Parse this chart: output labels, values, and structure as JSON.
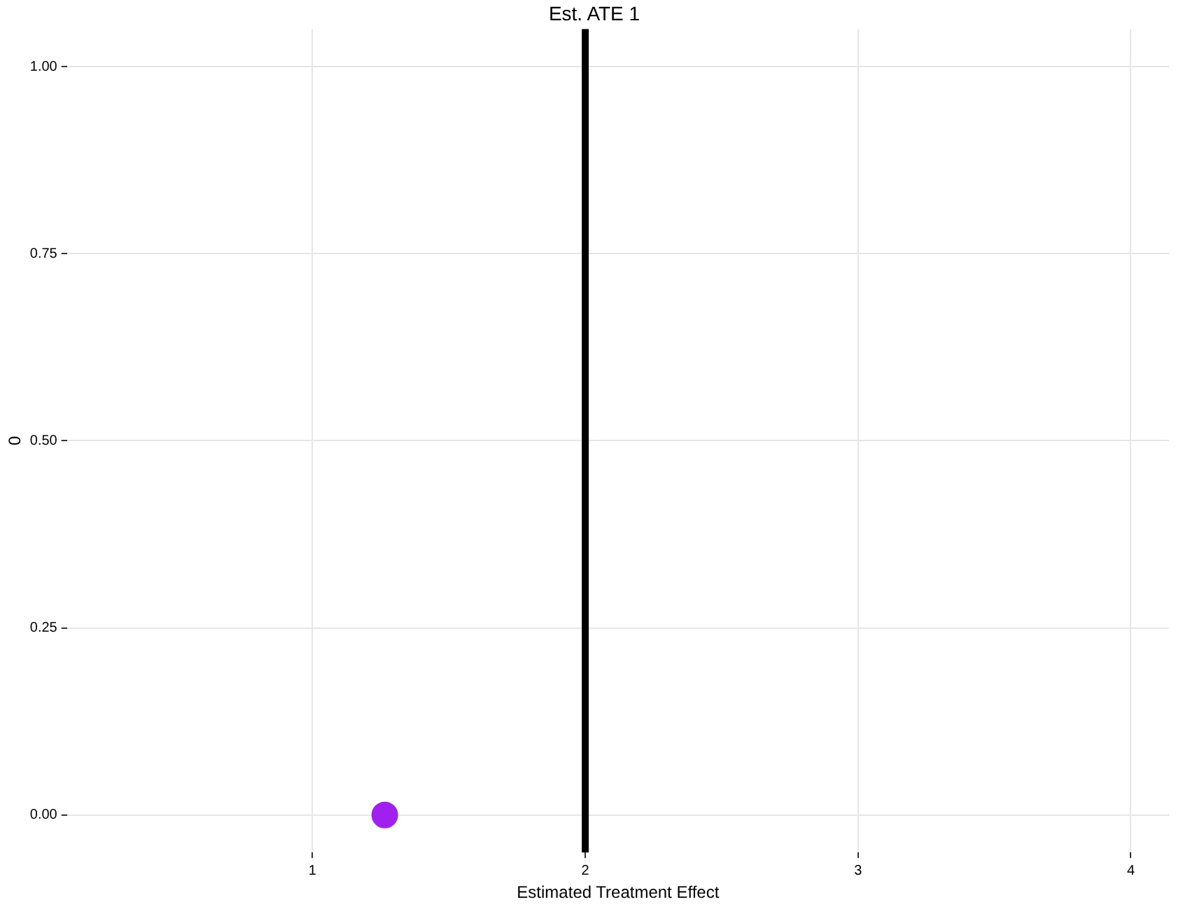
{
  "chart_data": {
    "type": "scatter",
    "title": "Est. ATE 1",
    "xlabel": "Estimated Treatment Effect",
    "ylabel": "0",
    "x": [
      1.265
    ],
    "values": [
      0
    ],
    "color": "#a020f0",
    "marker": "circle",
    "xlim": [
      0.1,
      4.14
    ],
    "xticks": [
      1,
      2,
      3,
      4
    ],
    "ylim": [
      -0.05,
      1.05
    ],
    "yticks": [
      {
        "value": 0,
        "label": "0.00"
      },
      {
        "value": 0.25,
        "label": "0.25"
      },
      {
        "value": 0.5,
        "label": "0.50"
      },
      {
        "value": 0.75,
        "label": "0.75"
      },
      {
        "value": 1,
        "label": "1.00"
      }
    ],
    "grid": true,
    "legend": false,
    "ref_lines": [
      {
        "axis": "x",
        "value": 2,
        "color": "#000000",
        "line_style": "solid"
      }
    ]
  }
}
